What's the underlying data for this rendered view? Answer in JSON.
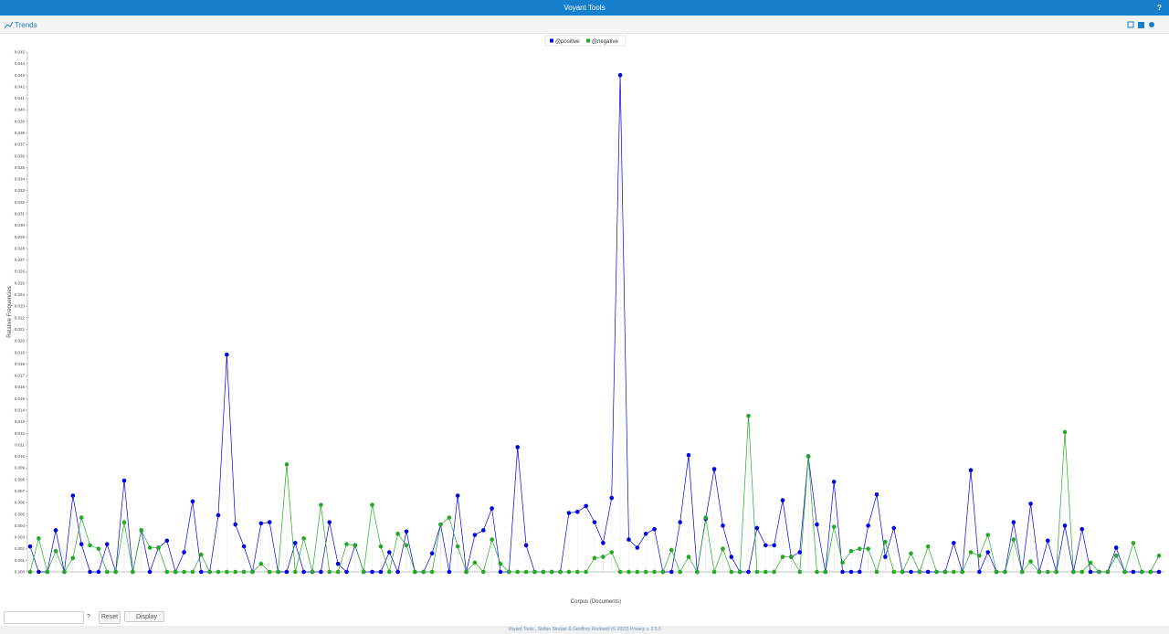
{
  "header": {
    "title": "Voyant Tools",
    "help": "?"
  },
  "panel": {
    "title": "Trends"
  },
  "chart_data": {
    "type": "line",
    "x_label": "Corpus (Documents)",
    "y_label": "Relative Frequencies",
    "categories": [
      null,
      null,
      null,
      null,
      null,
      null,
      null,
      null,
      null,
      null,
      null,
      null,
      null,
      null,
      null,
      null,
      null,
      null,
      null,
      null,
      null,
      null,
      null,
      null,
      null,
      null,
      null,
      null,
      null,
      null,
      null,
      null,
      null,
      null,
      null,
      null,
      null,
      null,
      null,
      null,
      null,
      null,
      null,
      null,
      null,
      null,
      null,
      null,
      null,
      null,
      null,
      null,
      null,
      null,
      null,
      null,
      null,
      null,
      null,
      null,
      null,
      null,
      null,
      null,
      null,
      null,
      null,
      null,
      null,
      null,
      null,
      null,
      null,
      null,
      null,
      null,
      null,
      null,
      null,
      null,
      null,
      null,
      null,
      null,
      null,
      null,
      null,
      null,
      null,
      null,
      null,
      null,
      null,
      null,
      null,
      null,
      null,
      null,
      null,
      null,
      null,
      null,
      null,
      null,
      null,
      null,
      null,
      null,
      null,
      null,
      null,
      null,
      null,
      null,
      null,
      null,
      null,
      null,
      null,
      null,
      null,
      null,
      null,
      null,
      null,
      null,
      null,
      null,
      null,
      null,
      null,
      null,
      null
    ],
    "series": [
      {
        "name": "@positive",
        "color": "#0000e0",
        "values": [
          0.0022,
          0,
          0,
          0.0036,
          0,
          0.0066,
          0.0024,
          0,
          0,
          0.0024,
          0,
          0.0079,
          0,
          0.0036,
          0,
          0.0021,
          0.0027,
          0,
          0.0017,
          0.0061,
          0,
          0,
          0.0049,
          0.0188,
          0.0041,
          0.0022,
          0,
          0.0042,
          0.0043,
          0,
          0,
          0.0025,
          0,
          0,
          0,
          0.0043,
          0.0007,
          0,
          0.0023,
          0,
          0,
          0,
          0.0017,
          0,
          0.0035,
          0,
          0,
          0.0016,
          0.0041,
          0,
          0.0066,
          0,
          0.0032,
          0.0036,
          0.0055,
          0,
          0,
          0.0108,
          0.0023,
          0,
          0,
          0,
          0,
          0.0051,
          0.0052,
          0.0057,
          0.0043,
          0.0025,
          0.0064,
          0.043,
          0.0028,
          0.0021,
          0.0033,
          0.0037,
          0,
          0,
          0.0043,
          0.0101,
          0,
          0.0046,
          0.0089,
          0.004,
          0.0013,
          0,
          0,
          0.0038,
          0.0023,
          0.0023,
          0.0062,
          0.0013,
          0.0017,
          0.01,
          0.0041,
          0,
          0.0078,
          0,
          0,
          0,
          0.004,
          0.0067,
          0.0013,
          0.0038,
          0,
          0,
          0,
          0,
          0,
          0,
          0.0025,
          0,
          0.0088,
          0,
          0.0017,
          0,
          0,
          0.0043,
          0,
          0.0059,
          0,
          0.0027,
          0,
          0.004,
          0,
          0.0037,
          0,
          0,
          0,
          0.0021,
          0,
          0,
          0,
          0,
          0
        ]
      },
      {
        "name": "@negative",
        "color": "#22aa22",
        "values": [
          0,
          0.0029,
          0,
          0.0018,
          0,
          0.0012,
          0.0047,
          0.0023,
          0.002,
          0,
          0,
          0.0043,
          0,
          0.0036,
          0.0021,
          0.0021,
          0,
          0,
          0,
          0,
          0.0015,
          0,
          0,
          0,
          0,
          0,
          0,
          0.0007,
          0,
          0,
          0.0093,
          0,
          0.0029,
          0,
          0.0058,
          0,
          0,
          0.0024,
          0.0023,
          0,
          0.0058,
          0.0022,
          0,
          0.0033,
          0.0023,
          0,
          0,
          0,
          0.0041,
          0.0047,
          0.0022,
          0,
          0.0008,
          0,
          0.0028,
          0.0007,
          0,
          0,
          0,
          0,
          0,
          0,
          0,
          0,
          0,
          0,
          0.0012,
          0.0013,
          0.0017,
          0,
          0,
          0,
          0,
          0,
          0,
          0.0019,
          0,
          0.0013,
          0,
          0.0047,
          0,
          0.002,
          0,
          0,
          0.0135,
          0,
          0,
          0,
          0.0013,
          0.0013,
          0,
          0.01,
          0,
          0,
          0.0039,
          0.0008,
          0.0018,
          0.002,
          0.002,
          0,
          0.0026,
          0,
          0,
          0.0016,
          0,
          0.0022,
          0,
          0,
          0,
          0,
          0.0017,
          0.0014,
          0.0032,
          0,
          0,
          0.0028,
          0,
          0.0009,
          0,
          0,
          0,
          0.0121,
          0,
          0,
          0.0008,
          0,
          0,
          0.0014,
          0,
          0.0025,
          0,
          0,
          0.0014
        ]
      }
    ],
    "ylim": [
      0,
      0.045
    ],
    "yticks": [
      {
        "value": 0,
        "label": "0.000"
      },
      0.001,
      0.002,
      0.003,
      0.004,
      0.005,
      0.006,
      0.007,
      0.008,
      0.009,
      {
        "value": 0.01,
        "label": "0.010"
      },
      0.011,
      0.012,
      0.013,
      0.014,
      0.015,
      0.016,
      0.017,
      0.018,
      0.019,
      {
        "value": 0.02,
        "label": "0.020"
      },
      0.021,
      0.022,
      0.023,
      0.024,
      0.025,
      0.026,
      0.027,
      0.028,
      0.029,
      {
        "value": 0.03,
        "label": "0.030"
      },
      0.031,
      0.032,
      0.033,
      0.034,
      0.035,
      0.036,
      0.037,
      0.038,
      0.039,
      {
        "value": 0.04,
        "label": "0.040"
      },
      0.041,
      0.042,
      0.043,
      0.044,
      0.045
    ],
    "legend": "top"
  },
  "toolbar": {
    "help": "?",
    "reset": "Reset",
    "display": "Display"
  },
  "footer": {
    "text": "Voyant Tools , Stéfan Sinclair & Geoffrey Rockwell (© 2022) Privacy v. 2.5.0"
  }
}
